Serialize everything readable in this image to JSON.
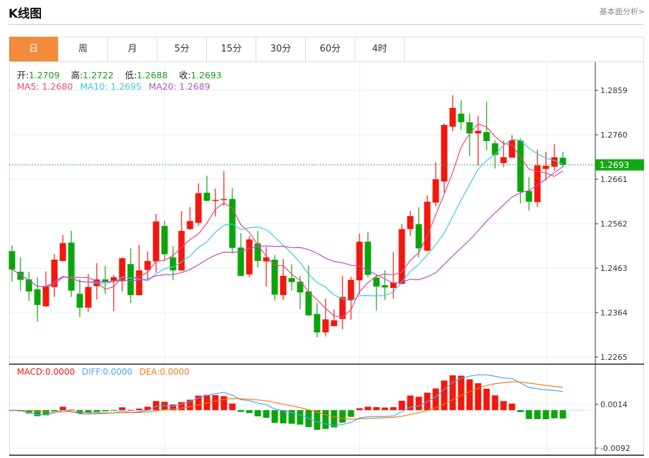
{
  "header": {
    "title": "K线图",
    "link": "基本面分析>"
  },
  "tabs": [
    {
      "label": "日",
      "active": true
    },
    {
      "label": "周"
    },
    {
      "label": "月"
    },
    {
      "label": "5分"
    },
    {
      "label": "15分"
    },
    {
      "label": "30分"
    },
    {
      "label": "60分"
    },
    {
      "label": "4时"
    }
  ],
  "ohlc_info": {
    "open_label": "开:",
    "open": "1.2709",
    "high_label": "高:",
    "high": "1.2722",
    "low_label": "低:",
    "low": "1.2688",
    "close_label": "收:",
    "close": "1.2693"
  },
  "ma_info": {
    "ma5": "MA5: 1.2680",
    "ma10": "MA10: 1.2695",
    "ma20": "MA20: 1.2689"
  },
  "macd_info": {
    "macd": "MACD:0.0000",
    "diff": "DIFF:0.0000",
    "dea": "DEA:0.0000"
  },
  "current_price": "1.2693",
  "colors": {
    "up": "#f2180c",
    "down": "#0aa50a",
    "ma5": "#f0447a",
    "ma10": "#3ec8e0",
    "ma20": "#b650c8",
    "diff": "#4aa6f0",
    "dea": "#f57a1a",
    "accent": "#f28c3c"
  },
  "chart_data": {
    "type": "candlestick",
    "price_ticks": [
      "1.2859",
      "1.2760",
      "1.2661",
      "1.2562",
      "1.2463",
      "1.2364",
      "1.2265"
    ],
    "ylim": [
      1.2265,
      1.2859
    ],
    "macd_ticks": [
      "0.0014",
      "-0.0092"
    ],
    "macd_ylim": [
      -0.0092,
      0.0014
    ],
    "candles": [
      [
        1.2501,
        1.2514,
        1.2433,
        1.246
      ],
      [
        1.2455,
        1.2487,
        1.2412,
        1.2437
      ],
      [
        1.2438,
        1.2455,
        1.239,
        1.2411
      ],
      [
        1.2416,
        1.2442,
        1.2344,
        1.2381
      ],
      [
        1.2378,
        1.2456,
        1.2377,
        1.2422
      ],
      [
        1.2421,
        1.2494,
        1.2399,
        1.2482
      ],
      [
        1.2479,
        1.2537,
        1.2478,
        1.2519
      ],
      [
        1.252,
        1.2546,
        1.2399,
        1.2413
      ],
      [
        1.2406,
        1.2438,
        1.2354,
        1.2375
      ],
      [
        1.2375,
        1.245,
        1.2366,
        1.2421
      ],
      [
        1.2423,
        1.2474,
        1.2393,
        1.2438
      ],
      [
        1.2438,
        1.2468,
        1.2405,
        1.2432
      ],
      [
        1.2435,
        1.2448,
        1.2367,
        1.2443
      ],
      [
        1.2434,
        1.2487,
        1.2411,
        1.2485
      ],
      [
        1.2472,
        1.2507,
        1.2386,
        1.2403
      ],
      [
        1.2403,
        1.2515,
        1.2402,
        1.2458
      ],
      [
        1.2459,
        1.25,
        1.2437,
        1.2479
      ],
      [
        1.2478,
        1.2584,
        1.2453,
        1.2567
      ],
      [
        1.2557,
        1.2569,
        1.2481,
        1.2494
      ],
      [
        1.2487,
        1.2512,
        1.2436,
        1.2458
      ],
      [
        1.2458,
        1.259,
        1.2457,
        1.2546
      ],
      [
        1.255,
        1.2599,
        1.2548,
        1.2568
      ],
      [
        1.2564,
        1.2652,
        1.2557,
        1.263
      ],
      [
        1.2631,
        1.2669,
        1.2612,
        1.2613
      ],
      [
        1.2613,
        1.264,
        1.2578,
        1.2615
      ],
      [
        1.2615,
        1.2679,
        1.2602,
        1.2617
      ],
      [
        1.2617,
        1.2641,
        1.2496,
        1.2508
      ],
      [
        1.2509,
        1.2541,
        1.2445,
        1.2446
      ],
      [
        1.2449,
        1.2534,
        1.2443,
        1.2527
      ],
      [
        1.2518,
        1.2546,
        1.2465,
        1.2479
      ],
      [
        1.2478,
        1.2511,
        1.2422,
        1.2487
      ],
      [
        1.2482,
        1.2492,
        1.2391,
        1.2404
      ],
      [
        1.2403,
        1.2483,
        1.2392,
        1.2446
      ],
      [
        1.2441,
        1.2472,
        1.2413,
        1.2432
      ],
      [
        1.2433,
        1.2446,
        1.2372,
        1.2409
      ],
      [
        1.2411,
        1.2469,
        1.2357,
        1.2358
      ],
      [
        1.2361,
        1.2386,
        1.2309,
        1.232
      ],
      [
        1.232,
        1.2395,
        1.2311,
        1.2349
      ],
      [
        1.2334,
        1.2371,
        1.2333,
        1.2347
      ],
      [
        1.235,
        1.2446,
        1.2327,
        1.2399
      ],
      [
        1.2392,
        1.2444,
        1.2348,
        1.2437
      ],
      [
        1.2436,
        1.254,
        1.2405,
        1.2522
      ],
      [
        1.2522,
        1.2544,
        1.2442,
        1.2448
      ],
      [
        1.2442,
        1.2447,
        1.2369,
        1.2422
      ],
      [
        1.2425,
        1.2458,
        1.2392,
        1.242
      ],
      [
        1.2419,
        1.2499,
        1.2395,
        1.2431
      ],
      [
        1.2428,
        1.2561,
        1.2427,
        1.255
      ],
      [
        1.255,
        1.259,
        1.2534,
        1.2579
      ],
      [
        1.2561,
        1.2599,
        1.2487,
        1.2507
      ],
      [
        1.2502,
        1.2625,
        1.25,
        1.2611
      ],
      [
        1.2609,
        1.2699,
        1.2601,
        1.2661
      ],
      [
        1.2656,
        1.2785,
        1.2631,
        1.2782
      ],
      [
        1.2778,
        1.2848,
        1.2768,
        1.282
      ],
      [
        1.2807,
        1.2837,
        1.2771,
        1.2788
      ],
      [
        1.2788,
        1.2807,
        1.2713,
        1.2763
      ],
      [
        1.2763,
        1.2802,
        1.2691,
        1.2769
      ],
      [
        1.2766,
        1.2834,
        1.2726,
        1.2746
      ],
      [
        1.2741,
        1.2748,
        1.2685,
        1.2715
      ],
      [
        1.2697,
        1.2747,
        1.2688,
        1.271
      ],
      [
        1.2709,
        1.2759,
        1.2709,
        1.2748
      ],
      [
        1.2747,
        1.2752,
        1.2607,
        1.2633
      ],
      [
        1.2635,
        1.2666,
        1.2591,
        1.2611
      ],
      [
        1.261,
        1.2727,
        1.2599,
        1.2692
      ],
      [
        1.2684,
        1.2722,
        1.2658,
        1.2691
      ],
      [
        1.2689,
        1.2739,
        1.268,
        1.271
      ],
      [
        1.2709,
        1.2722,
        1.2688,
        1.2693
      ]
    ]
  }
}
